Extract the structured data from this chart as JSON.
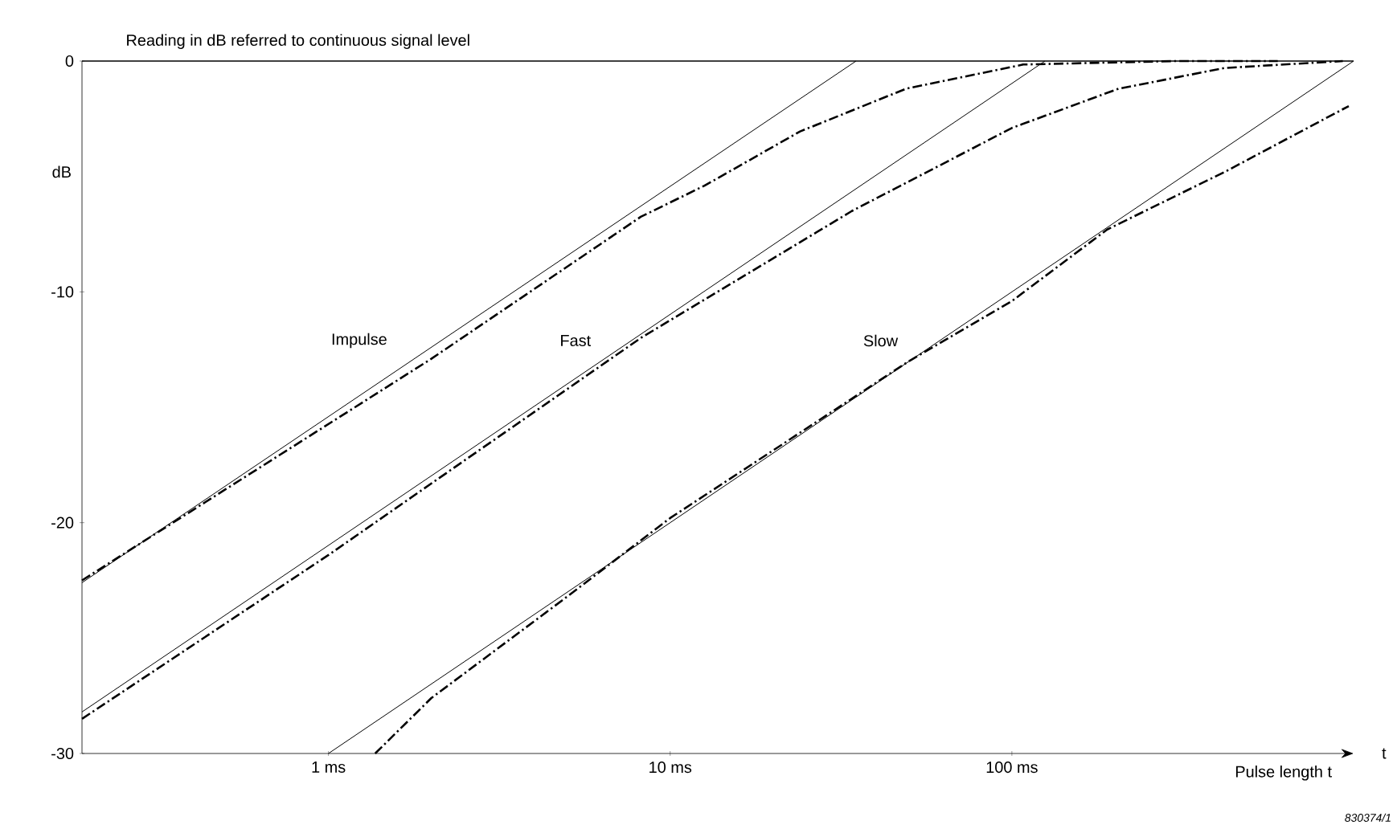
{
  "chart_data": {
    "type": "line",
    "title": "Reading in dB referred to continuous signal level",
    "xlabel": "Pulse length t",
    "ylabel": "dB",
    "log": "x",
    "xlim": [
      0.19,
      1000
    ],
    "ylim": [
      -30,
      0
    ],
    "xticks": [
      {
        "value": 1,
        "label": "1 ms"
      },
      {
        "value": 10,
        "label": "10 ms"
      },
      {
        "value": 100,
        "label": "100 ms"
      }
    ],
    "yticks": [
      -30,
      -20,
      -10,
      0
    ],
    "grid": false,
    "marker": "none",
    "series": [
      {
        "color": "#000000",
        "line_style": "solid",
        "x": [
          0.19,
          35
        ],
        "values": [
          -22.6,
          0
        ]
      },
      {
        "color": "#000000",
        "line_style": "dashdot",
        "x": [
          0.19,
          2,
          8.2,
          12.6,
          24,
          49,
          108,
          300,
          600
        ],
        "values": [
          -22.5,
          -12.9,
          -6.75,
          -5.4,
          -3.05,
          -1.2,
          -0.15,
          0,
          0
        ]
      },
      {
        "color": "#000000",
        "line_style": "solid",
        "x": [
          0.19,
          125
        ],
        "values": [
          -28.2,
          0
        ]
      },
      {
        "color": "#000000",
        "line_style": "dashdot",
        "x": [
          0.19,
          1,
          8.2,
          34,
          100,
          205,
          420,
          930
        ],
        "values": [
          -28.5,
          -21.4,
          -12,
          -6.5,
          -2.9,
          -1.2,
          -0.3,
          0
        ]
      },
      {
        "color": "#000000",
        "line_style": "solid",
        "x": [
          1,
          1000
        ],
        "values": [
          -30,
          0
        ]
      },
      {
        "color": "#000000",
        "line_style": "dashdot",
        "x": [
          1.37,
          2,
          5,
          10,
          50,
          100,
          190,
          420,
          968
        ],
        "values": [
          -30,
          -27.6,
          -23.2,
          -19.8,
          -13,
          -10.4,
          -7.3,
          -4.8,
          -1.95
        ]
      }
    ],
    "ref_lines": [
      {
        "axis": "y",
        "value": 0,
        "color": "#000000"
      }
    ],
    "annotations": [
      "Impulse",
      "Fast",
      "Slow",
      "t",
      "830374/1"
    ]
  }
}
